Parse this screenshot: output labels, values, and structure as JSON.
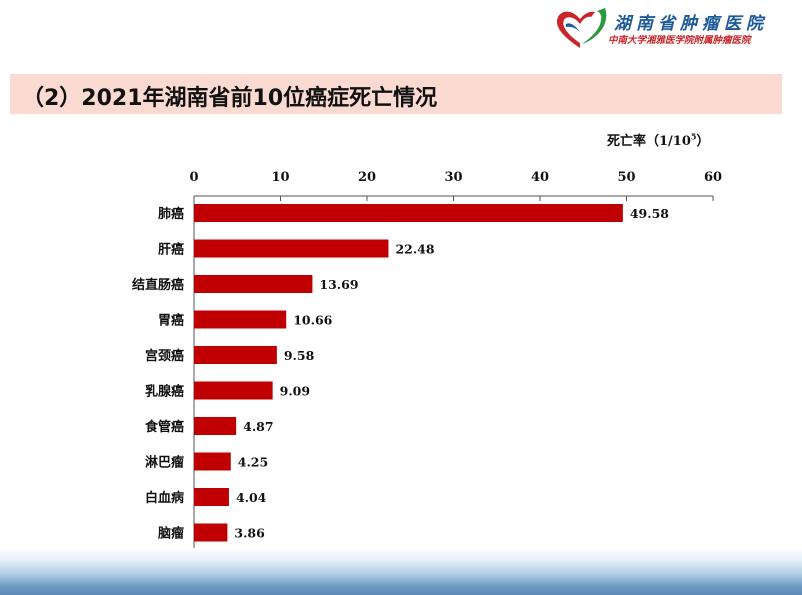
{
  "header": {
    "hospital_name": "湖南省肿瘤医院",
    "hospital_subtitle": "中南大学湘雅医学院附属肿瘤医院",
    "logo_color": "#c8262b"
  },
  "slide": {
    "title": "（2）2021年湖南省前10位癌症死亡情况",
    "title_band_color": "#fadad1"
  },
  "chart_data": {
    "type": "bar",
    "orientation": "horizontal",
    "unit_label_text": "死亡率（1/10",
    "unit_label_sup": "5",
    "unit_label_close": "）",
    "categories": [
      "肺癌",
      "肝癌",
      "结直肠癌",
      "胃癌",
      "宫颈癌",
      "乳腺癌",
      "食管癌",
      "淋巴瘤",
      "白血病",
      "脑瘤"
    ],
    "values": [
      49.58,
      22.48,
      13.69,
      10.66,
      9.58,
      9.09,
      4.87,
      4.25,
      4.04,
      3.86
    ],
    "value_labels": [
      "49.58",
      "22.48",
      "13.69",
      "10.66",
      "9.58",
      "9.09",
      "4.87",
      "4.25",
      "4.04",
      "3.86"
    ],
    "xlim": [
      0,
      60
    ],
    "ticks": [
      0,
      10,
      20,
      30,
      40,
      50,
      60
    ],
    "axis_position": "top",
    "bar_color": "#c00000",
    "grid": false,
    "legend": "none"
  }
}
